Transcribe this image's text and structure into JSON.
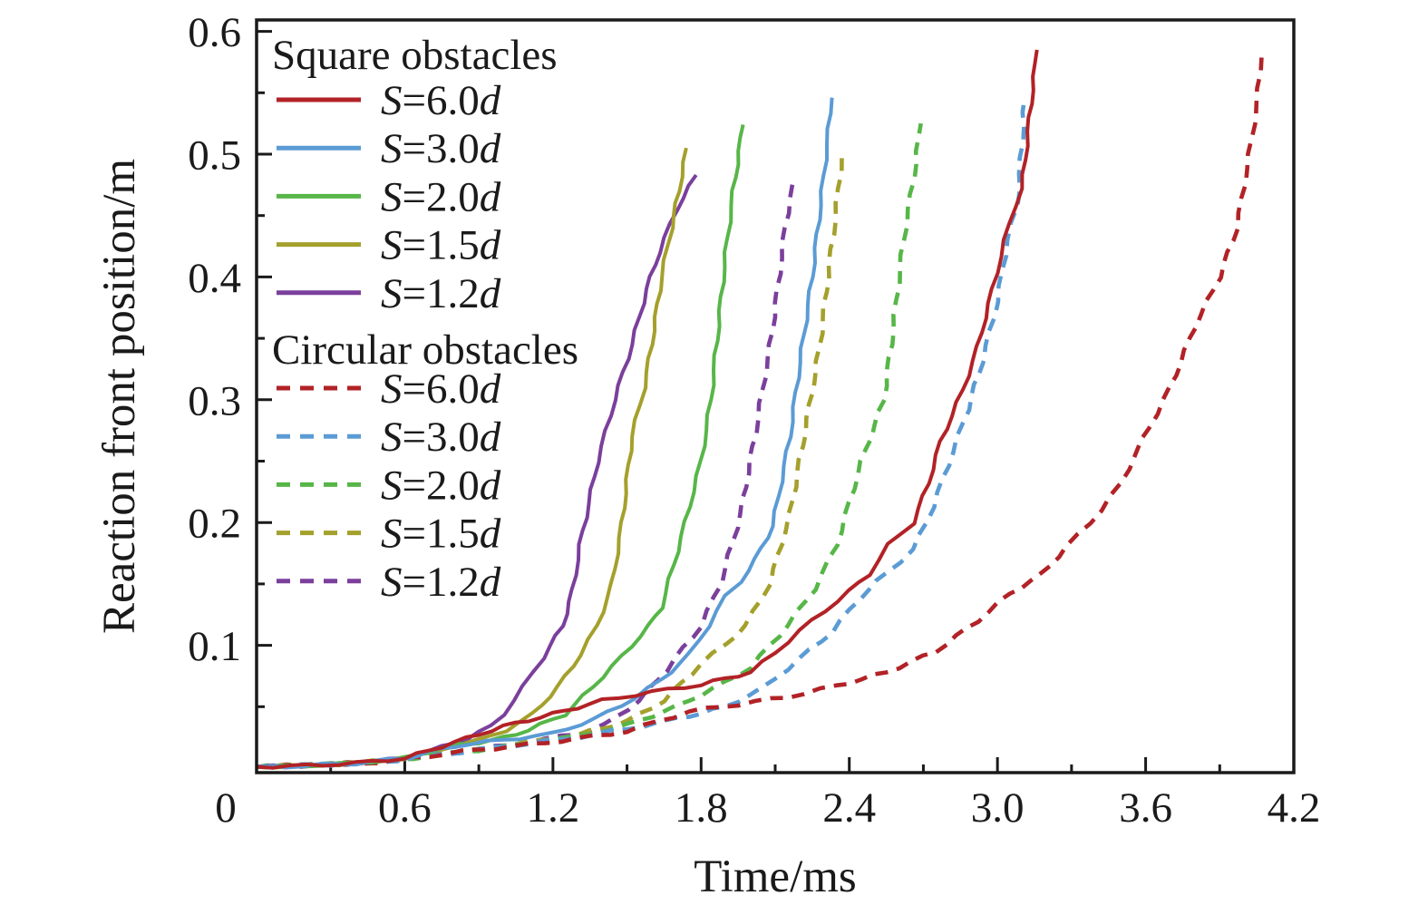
{
  "figure": {
    "background": "#ffffff",
    "frame_color": "#1a1a1a"
  },
  "axes": {
    "xlabel": "Time/ms",
    "ylabel": "Reaction front position/m",
    "xlim": [
      0,
      4.2
    ],
    "ylim": [
      0,
      0.613
    ],
    "x_major_ticks": [
      0.6,
      1.2,
      1.8,
      2.4,
      3.0,
      3.6
    ],
    "x_minor_ticks": [
      0.3,
      0.9,
      1.5,
      2.1,
      2.7,
      3.3,
      3.9
    ],
    "y_major_ticks": [
      0.1,
      0.2,
      0.3,
      0.4,
      0.5,
      0.6
    ],
    "y_minor_ticks": [
      0.05,
      0.15,
      0.25,
      0.35,
      0.45,
      0.55
    ],
    "x_tick_labels": [
      {
        "v": 0,
        "label": "0",
        "dx": -34
      },
      {
        "v": 0.6,
        "label": "0.6",
        "dx": 0
      },
      {
        "v": 1.2,
        "label": "1.2",
        "dx": 0
      },
      {
        "v": 1.8,
        "label": "1.8",
        "dx": 0
      },
      {
        "v": 2.4,
        "label": "2.4",
        "dx": 0
      },
      {
        "v": 3.0,
        "label": "3.0",
        "dx": 0
      },
      {
        "v": 3.6,
        "label": "3.6",
        "dx": 0
      },
      {
        "v": 4.2,
        "label": "4.2",
        "dx": 0
      }
    ],
    "y_tick_labels": [
      {
        "v": 0.1,
        "label": "0.1"
      },
      {
        "v": 0.2,
        "label": "0.2"
      },
      {
        "v": 0.3,
        "label": "0.3"
      },
      {
        "v": 0.4,
        "label": "0.4"
      },
      {
        "v": 0.5,
        "label": "0.5"
      },
      {
        "v": 0.6,
        "label": "0.6"
      }
    ],
    "grid": false,
    "ticks_direction": "in"
  },
  "legend": {
    "position": "upper-left-inside",
    "var_symbol": "S",
    "unit_symbol": "d",
    "groups": [
      {
        "title": "Square obstacles",
        "style": "solid",
        "items": [
          {
            "value": "=6.0",
            "color": "#b22226"
          },
          {
            "value": "=3.0",
            "color": "#5b9bd5"
          },
          {
            "value": "=2.0",
            "color": "#57b648"
          },
          {
            "value": "=1.5",
            "color": "#a4a02c"
          },
          {
            "value": "=1.2",
            "color": "#7b3f9c"
          }
        ]
      },
      {
        "title": "Circular obstacles",
        "style": "dashed",
        "items": [
          {
            "value": "=6.0",
            "color": "#b22226"
          },
          {
            "value": "=3.0",
            "color": "#5b9bd5"
          },
          {
            "value": "=2.0",
            "color": "#57b648"
          },
          {
            "value": "=1.5",
            "color": "#a4a02c"
          },
          {
            "value": "=1.2",
            "color": "#7b3f9c"
          }
        ]
      }
    ]
  },
  "chart_data": {
    "type": "line",
    "title": "",
    "xlabel": "Time/ms",
    "ylabel": "Reaction front position/m",
    "xlim": [
      0,
      4.2
    ],
    "ylim": [
      0,
      0.613
    ],
    "legend_position": "upper left",
    "grid": false,
    "series": [
      {
        "name": "Circular S=1.2d",
        "group": "circular",
        "spacing": "1.2d",
        "color": "#7b3f9c",
        "dash": true,
        "points": [
          [
            0,
            0.001
          ],
          [
            0.3,
            0.003
          ],
          [
            0.5,
            0.005
          ],
          [
            0.7,
            0.011
          ],
          [
            0.9,
            0.015
          ],
          [
            1.1,
            0.021
          ],
          [
            1.3,
            0.028
          ],
          [
            1.41,
            0.035
          ],
          [
            1.55,
            0.055
          ],
          [
            1.66,
            0.08
          ],
          [
            1.8,
            0.116
          ],
          [
            1.88,
            0.151
          ],
          [
            1.96,
            0.207
          ],
          [
            2.02,
            0.273
          ],
          [
            2.08,
            0.345
          ],
          [
            2.11,
            0.39
          ],
          [
            2.14,
            0.44
          ],
          [
            2.17,
            0.476
          ]
        ]
      },
      {
        "name": "Circular S=1.5d",
        "group": "circular",
        "spacing": "1.5d",
        "color": "#a4a02c",
        "dash": true,
        "points": [
          [
            0,
            0.001
          ],
          [
            0.3,
            0.003
          ],
          [
            0.5,
            0.005
          ],
          [
            0.7,
            0.01
          ],
          [
            0.9,
            0.015
          ],
          [
            1.1,
            0.021
          ],
          [
            1.3,
            0.027
          ],
          [
            1.5,
            0.038
          ],
          [
            1.65,
            0.055
          ],
          [
            1.8,
            0.085
          ],
          [
            1.9,
            0.101
          ],
          [
            1.98,
            0.116
          ],
          [
            2.08,
            0.151
          ],
          [
            2.16,
            0.207
          ],
          [
            2.22,
            0.273
          ],
          [
            2.28,
            0.343
          ],
          [
            2.32,
            0.41
          ],
          [
            2.35,
            0.46
          ],
          [
            2.37,
            0.498
          ]
        ]
      },
      {
        "name": "Circular S=2.0d",
        "group": "circular",
        "spacing": "2.0d",
        "color": "#57b648",
        "dash": true,
        "points": [
          [
            0,
            0.001
          ],
          [
            0.3,
            0.003
          ],
          [
            0.5,
            0.005
          ],
          [
            0.7,
            0.01
          ],
          [
            0.9,
            0.015
          ],
          [
            1.1,
            0.02
          ],
          [
            1.3,
            0.026
          ],
          [
            1.5,
            0.035
          ],
          [
            1.7,
            0.05
          ],
          [
            1.9,
            0.07
          ],
          [
            2.0,
            0.082
          ],
          [
            2.08,
            0.1
          ],
          [
            2.15,
            0.116
          ],
          [
            2.26,
            0.146
          ],
          [
            2.35,
            0.182
          ],
          [
            2.45,
            0.25
          ],
          [
            2.54,
            0.3
          ],
          [
            2.57,
            0.345
          ],
          [
            2.62,
            0.43
          ],
          [
            2.66,
            0.48
          ],
          [
            2.69,
            0.525
          ]
        ]
      },
      {
        "name": "Circular S=3.0d",
        "group": "circular",
        "spacing": "3.0d",
        "color": "#5b9bd5",
        "dash": true,
        "points": [
          [
            0,
            0.001
          ],
          [
            0.3,
            0.003
          ],
          [
            0.5,
            0.005
          ],
          [
            0.7,
            0.01
          ],
          [
            0.9,
            0.015
          ],
          [
            1.1,
            0.02
          ],
          [
            1.3,
            0.025
          ],
          [
            1.5,
            0.032
          ],
          [
            1.7,
            0.04
          ],
          [
            1.9,
            0.05
          ],
          [
            2.05,
            0.065
          ],
          [
            2.15,
            0.081
          ],
          [
            2.33,
            0.111
          ],
          [
            2.44,
            0.138
          ],
          [
            2.55,
            0.159
          ],
          [
            2.66,
            0.178
          ],
          [
            2.74,
            0.213
          ],
          [
            2.82,
            0.258
          ],
          [
            2.88,
            0.292
          ],
          [
            2.94,
            0.332
          ],
          [
            3.0,
            0.38
          ],
          [
            3.04,
            0.43
          ],
          [
            3.08,
            0.458
          ],
          [
            3.1,
            0.51
          ],
          [
            3.11,
            0.546
          ]
        ]
      },
      {
        "name": "Circular S=6.0d",
        "group": "circular",
        "spacing": "6.0d",
        "color": "#b22226",
        "dash": true,
        "points": [
          [
            0,
            0.001
          ],
          [
            0.3,
            0.003
          ],
          [
            0.5,
            0.005
          ],
          [
            0.7,
            0.01
          ],
          [
            0.9,
            0.015
          ],
          [
            1.1,
            0.019
          ],
          [
            1.3,
            0.024
          ],
          [
            1.5,
            0.03
          ],
          [
            1.75,
            0.046
          ],
          [
            1.95,
            0.052
          ],
          [
            2.15,
            0.058
          ],
          [
            2.35,
            0.067
          ],
          [
            2.55,
            0.078
          ],
          [
            2.75,
            0.095
          ],
          [
            2.92,
            0.12
          ],
          [
            3.05,
            0.142
          ],
          [
            3.18,
            0.158
          ],
          [
            3.28,
            0.18
          ],
          [
            3.42,
            0.21
          ],
          [
            3.5,
            0.232
          ],
          [
            3.59,
            0.268
          ],
          [
            3.7,
            0.31
          ],
          [
            3.8,
            0.36
          ],
          [
            3.9,
            0.4
          ],
          [
            3.97,
            0.44
          ],
          [
            4.02,
            0.5
          ],
          [
            4.05,
            0.54
          ],
          [
            4.07,
            0.581
          ]
        ]
      },
      {
        "name": "Square S=1.2d",
        "group": "square",
        "spacing": "1.2d",
        "color": "#7b3f9c",
        "dash": false,
        "points": [
          [
            0,
            0.001
          ],
          [
            0.2,
            0.002
          ],
          [
            0.4,
            0.004
          ],
          [
            0.6,
            0.008
          ],
          [
            0.75,
            0.017
          ],
          [
            0.85,
            0.024
          ],
          [
            0.95,
            0.034
          ],
          [
            1.0,
            0.044
          ],
          [
            1.08,
            0.066
          ],
          [
            1.16,
            0.09
          ],
          [
            1.24,
            0.116
          ],
          [
            1.28,
            0.145
          ],
          [
            1.31,
            0.182
          ],
          [
            1.38,
            0.249
          ],
          [
            1.45,
            0.3
          ],
          [
            1.52,
            0.345
          ],
          [
            1.58,
            0.39
          ],
          [
            1.63,
            0.42
          ],
          [
            1.7,
            0.455
          ],
          [
            1.78,
            0.483
          ]
        ]
      },
      {
        "name": "Square S=1.5d",
        "group": "square",
        "spacing": "1.5d",
        "color": "#a4a02c",
        "dash": false,
        "points": [
          [
            0,
            0.001
          ],
          [
            0.2,
            0.002
          ],
          [
            0.4,
            0.004
          ],
          [
            0.6,
            0.008
          ],
          [
            0.75,
            0.016
          ],
          [
            0.89,
            0.022
          ],
          [
            1.01,
            0.031
          ],
          [
            1.12,
            0.044
          ],
          [
            1.22,
            0.066
          ],
          [
            1.31,
            0.092
          ],
          [
            1.38,
            0.116
          ],
          [
            1.44,
            0.15
          ],
          [
            1.48,
            0.2
          ],
          [
            1.52,
            0.27
          ],
          [
            1.57,
            0.31
          ],
          [
            1.6,
            0.345
          ],
          [
            1.64,
            0.4
          ],
          [
            1.68,
            0.44
          ],
          [
            1.71,
            0.47
          ],
          [
            1.74,
            0.505
          ]
        ]
      },
      {
        "name": "Square S=2.0d",
        "group": "square",
        "spacing": "2.0d",
        "color": "#57b648",
        "dash": false,
        "points": [
          [
            0,
            0.001
          ],
          [
            0.2,
            0.002
          ],
          [
            0.4,
            0.004
          ],
          [
            0.6,
            0.008
          ],
          [
            0.8,
            0.019
          ],
          [
            0.95,
            0.022
          ],
          [
            1.1,
            0.031
          ],
          [
            1.25,
            0.044
          ],
          [
            1.36,
            0.066
          ],
          [
            1.48,
            0.091
          ],
          [
            1.59,
            0.116
          ],
          [
            1.64,
            0.131
          ],
          [
            1.72,
            0.188
          ],
          [
            1.8,
            0.25
          ],
          [
            1.84,
            0.3
          ],
          [
            1.87,
            0.36
          ],
          [
            1.9,
            0.42
          ],
          [
            1.93,
            0.47
          ],
          [
            1.97,
            0.524
          ]
        ]
      },
      {
        "name": "Square S=3.0d",
        "group": "square",
        "spacing": "3.0d",
        "color": "#5b9bd5",
        "dash": false,
        "points": [
          [
            0,
            0.001
          ],
          [
            0.2,
            0.002
          ],
          [
            0.4,
            0.004
          ],
          [
            0.6,
            0.008
          ],
          [
            0.8,
            0.018
          ],
          [
            1.0,
            0.023
          ],
          [
            1.2,
            0.028
          ],
          [
            1.37,
            0.04
          ],
          [
            1.53,
            0.057
          ],
          [
            1.64,
            0.072
          ],
          [
            1.75,
            0.092
          ],
          [
            1.83,
            0.116
          ],
          [
            1.9,
            0.14
          ],
          [
            1.96,
            0.152
          ],
          [
            2.02,
            0.17
          ],
          [
            2.09,
            0.197
          ],
          [
            2.16,
            0.27
          ],
          [
            2.2,
            0.33
          ],
          [
            2.25,
            0.4
          ],
          [
            2.29,
            0.47
          ],
          [
            2.33,
            0.546
          ]
        ]
      },
      {
        "name": "Square S=6.0d",
        "group": "square",
        "spacing": "6.0d",
        "color": "#b22226",
        "dash": false,
        "points": [
          [
            0,
            0.001
          ],
          [
            0.2,
            0.002
          ],
          [
            0.4,
            0.004
          ],
          [
            0.6,
            0.008
          ],
          [
            0.8,
            0.021
          ],
          [
            1.0,
            0.034
          ],
          [
            1.2,
            0.044
          ],
          [
            1.4,
            0.055
          ],
          [
            1.6,
            0.062
          ],
          [
            1.8,
            0.068
          ],
          [
            2.0,
            0.078
          ],
          [
            2.1,
            0.094
          ],
          [
            2.2,
            0.112
          ],
          [
            2.3,
            0.128
          ],
          [
            2.4,
            0.144
          ],
          [
            2.48,
            0.158
          ],
          [
            2.56,
            0.182
          ],
          [
            2.66,
            0.2
          ],
          [
            2.72,
            0.232
          ],
          [
            2.77,
            0.266
          ],
          [
            2.86,
            0.308
          ],
          [
            2.92,
            0.343
          ],
          [
            2.98,
            0.39
          ],
          [
            3.03,
            0.43
          ],
          [
            3.07,
            0.458
          ],
          [
            3.1,
            0.472
          ],
          [
            3.13,
            0.53
          ],
          [
            3.16,
            0.585
          ]
        ]
      }
    ]
  }
}
